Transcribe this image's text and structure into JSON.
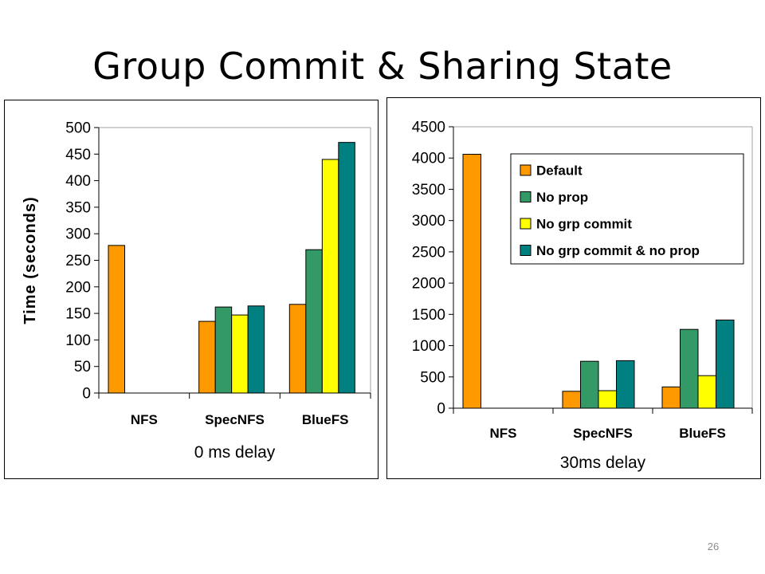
{
  "slide": {
    "title": "Group Commit & Sharing State",
    "page_number": "26"
  },
  "colors": {
    "Default": "#ff9900",
    "No prop": "#339966",
    "No grp commit": "#ffff00",
    "No grp commit & no prop": "#008080"
  },
  "chart_data": [
    {
      "type": "bar",
      "title": "",
      "subtitle": "0 ms delay",
      "xlabel": "0 ms delay",
      "ylabel": "Time (seconds)",
      "ylim": [
        0,
        500
      ],
      "yticks": [
        0,
        50,
        100,
        150,
        200,
        250,
        300,
        350,
        400,
        450,
        500
      ],
      "categories": [
        "NFS",
        "SpecNFS",
        "BlueFS"
      ],
      "legend": null,
      "series": [
        {
          "name": "Default",
          "values": [
            278,
            135,
            167
          ]
        },
        {
          "name": "No prop",
          "values": [
            null,
            162,
            270
          ]
        },
        {
          "name": "No grp commit",
          "values": [
            null,
            147,
            440
          ]
        },
        {
          "name": "No grp commit & no prop",
          "values": [
            null,
            164,
            472
          ]
        }
      ]
    },
    {
      "type": "bar",
      "title": "",
      "subtitle": "30ms delay",
      "xlabel": "30ms delay",
      "ylabel": "",
      "ylim": [
        0,
        4500
      ],
      "yticks": [
        0,
        500,
        1000,
        1500,
        2000,
        2500,
        3000,
        3500,
        4000,
        4500
      ],
      "categories": [
        "NFS",
        "SpecNFS",
        "BlueFS"
      ],
      "legend": {
        "placement": "top-right",
        "entries": [
          "Default",
          "No prop",
          "No grp commit",
          "No grp commit & no prop"
        ]
      },
      "series": [
        {
          "name": "Default",
          "values": [
            4060,
            270,
            340
          ]
        },
        {
          "name": "No prop",
          "values": [
            null,
            750,
            1260
          ]
        },
        {
          "name": "No grp commit",
          "values": [
            null,
            280,
            520
          ]
        },
        {
          "name": "No grp commit & no prop",
          "values": [
            null,
            760,
            1410
          ]
        }
      ]
    }
  ]
}
